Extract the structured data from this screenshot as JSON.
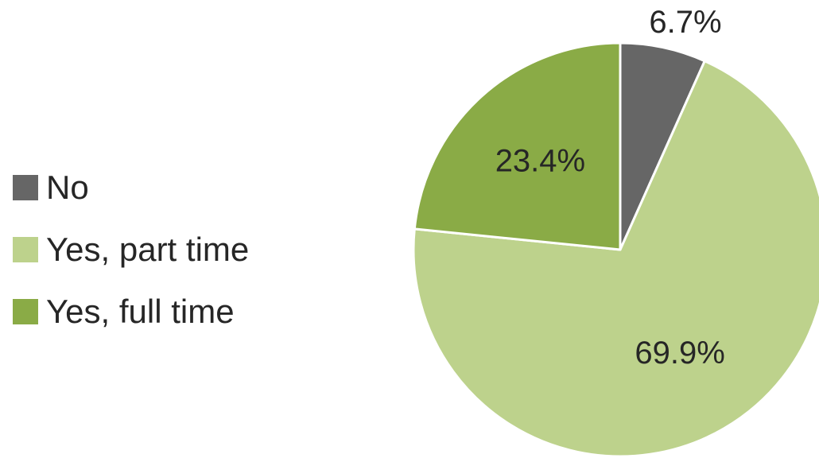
{
  "chart_data": {
    "type": "pie",
    "categories": [
      "No",
      "Yes, part time",
      "Yes, full time"
    ],
    "values": [
      6.7,
      69.9,
      23.4
    ],
    "data_labels": [
      "6.7%",
      "69.9%",
      "23.4%"
    ],
    "colors": [
      "#666666",
      "#bdd28c",
      "#8aab46"
    ],
    "start_angle_deg": 0,
    "direction": "clockwise",
    "legend_placement": "left"
  },
  "legend": {
    "items": [
      {
        "label": "No",
        "color": "#666666"
      },
      {
        "label": "Yes, part time",
        "color": "#bdd28c"
      },
      {
        "label": "Yes, full time",
        "color": "#8aab46"
      }
    ]
  }
}
